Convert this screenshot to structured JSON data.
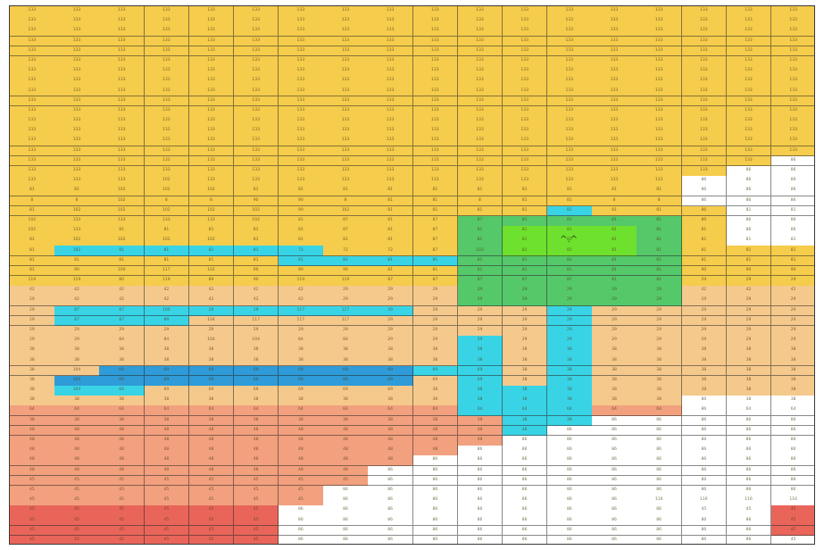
{
  "colors": {
    "yellow": "#f5cc4b",
    "light_orange": "#f5c98c",
    "salmon": "#f2a07e",
    "red": "#e9655a",
    "white": "#ffffff",
    "cyan": "#38d4e6",
    "blue": "#2f9bd8",
    "green": "#55c86a",
    "lime": "#6ee02e"
  },
  "face": "^.^",
  "grid": {
    "rows": [
      [
        "133",
        "133",
        "133",
        "133",
        "133",
        "133",
        "133",
        "133",
        "133",
        "133",
        "133",
        "133",
        "133",
        "133",
        "133",
        "133",
        "133",
        "133"
      ],
      [
        "133",
        "133",
        "133",
        "133",
        "133",
        "133",
        "133",
        "133",
        "133",
        "133",
        "133",
        "133",
        "133",
        "133",
        "133",
        "133",
        "133",
        "133"
      ],
      [
        "133",
        "133",
        "133",
        "133",
        "133",
        "133",
        "133",
        "133",
        "133",
        "133",
        "133",
        "133",
        "133",
        "133",
        "133",
        "133",
        "133",
        "133"
      ],
      [
        "133",
        "133",
        "133",
        "133",
        "133",
        "133",
        "133",
        "133",
        "133",
        "133",
        "133",
        "133",
        "133",
        "133",
        "133",
        "133",
        "133",
        "133"
      ],
      [
        "133",
        "133",
        "133",
        "133",
        "133",
        "133",
        "133",
        "133",
        "133",
        "133",
        "133",
        "133",
        "133",
        "133",
        "133",
        "133",
        "133",
        "133"
      ],
      [
        "133",
        "133",
        "133",
        "133",
        "133",
        "133",
        "133",
        "133",
        "133",
        "133",
        "133",
        "133",
        "133",
        "133",
        "133",
        "133",
        "133",
        "133"
      ],
      [
        "133",
        "133",
        "133",
        "133",
        "133",
        "133",
        "133",
        "133",
        "133",
        "133",
        "133",
        "133",
        "133",
        "133",
        "133",
        "133",
        "133",
        "133"
      ],
      [
        "133",
        "133",
        "133",
        "133",
        "133",
        "133",
        "133",
        "133",
        "133",
        "133",
        "133",
        "133",
        "133",
        "133",
        "133",
        "133",
        "133",
        "133"
      ],
      [
        "133",
        "133",
        "133",
        "133",
        "133",
        "133",
        "133",
        "133",
        "133",
        "133",
        "133",
        "133",
        "133",
        "133",
        "133",
        "133",
        "133",
        "133"
      ],
      [
        "133",
        "133",
        "133",
        "133",
        "133",
        "133",
        "133",
        "133",
        "133",
        "133",
        "133",
        "133",
        "133",
        "133",
        "133",
        "133",
        "133",
        "133"
      ],
      [
        "133",
        "133",
        "133",
        "133",
        "133",
        "133",
        "133",
        "133",
        "133",
        "133",
        "133",
        "133",
        "133",
        "133",
        "133",
        "133",
        "133",
        "133"
      ],
      [
        "133",
        "133",
        "133",
        "133",
        "133",
        "133",
        "133",
        "133",
        "133",
        "133",
        "133",
        "133",
        "133",
        "133",
        "133",
        "133",
        "133",
        "133"
      ],
      [
        "133",
        "133",
        "133",
        "133",
        "133",
        "133",
        "133",
        "133",
        "133",
        "133",
        "133",
        "133",
        "133",
        "133",
        "133",
        "133",
        "133",
        "133"
      ],
      [
        "133",
        "133",
        "133",
        "133",
        "133",
        "133",
        "133",
        "133",
        "133",
        "133",
        "133",
        "133",
        "133",
        "133",
        "133",
        "133",
        "133",
        "133"
      ],
      [
        "133",
        "133",
        "133",
        "133",
        "133",
        "133",
        "133",
        "133",
        "133",
        "133",
        "133",
        "133",
        "133",
        "133",
        "133",
        "133",
        "133",
        "133"
      ],
      [
        "133",
        "133",
        "133",
        "133",
        "133",
        "133",
        "133",
        "133",
        "133",
        "133",
        "133",
        "133",
        "133",
        "133",
        "133",
        "133",
        "133",
        "86"
      ],
      [
        "133",
        "133",
        "133",
        "133",
        "133",
        "133",
        "133",
        "133",
        "133",
        "133",
        "133",
        "133",
        "133",
        "133",
        "133",
        "133",
        "86",
        "86"
      ],
      [
        "133",
        "133",
        "133",
        "102",
        "133",
        "133",
        "133",
        "133",
        "133",
        "133",
        "133",
        "133",
        "133",
        "133",
        "133",
        "86",
        "86",
        "86"
      ],
      [
        "81",
        "81",
        "102",
        "102",
        "102",
        "81",
        "81",
        "81",
        "81",
        "81",
        "81",
        "81",
        "81",
        "81",
        "81",
        "86",
        "86",
        "86"
      ],
      [
        "8",
        "8",
        "102",
        "8",
        "8",
        "90",
        "90",
        "8",
        "81",
        "81",
        "8",
        "81",
        "81",
        "8",
        "8",
        "86",
        "86",
        "86"
      ],
      [
        "81",
        "102",
        "102",
        "102",
        "102",
        "102",
        "90",
        "102",
        "81",
        "81",
        "81",
        "81",
        "81",
        "81",
        "81",
        "86",
        "81",
        "81"
      ],
      [
        "102",
        "133",
        "133",
        "133",
        "133",
        "102",
        "81",
        "87",
        "81",
        "87",
        "87",
        "81",
        "81",
        "81",
        "81",
        "86",
        "86",
        "86"
      ],
      [
        "102",
        "133",
        "81",
        "81",
        "81",
        "81",
        "81",
        "87",
        "81",
        "87",
        "81",
        "81",
        "81",
        "81",
        "81",
        "81",
        "86",
        "86"
      ],
      [
        "81",
        "102",
        "102",
        "102",
        "102",
        "81",
        "81",
        "81",
        "81",
        "87",
        "81",
        "81",
        "81",
        "81",
        "81",
        "81",
        "81",
        "81"
      ],
      [
        "81",
        "102",
        "81",
        "81",
        "81",
        "81",
        "72",
        "72",
        "72",
        "87",
        "103",
        "81",
        "81",
        "81",
        "81",
        "81",
        "81",
        "81"
      ],
      [
        "81",
        "81",
        "81",
        "81",
        "81",
        "81",
        "81",
        "81",
        "81",
        "81",
        "81",
        "81",
        "81",
        "81",
        "81",
        "81",
        "81",
        "81"
      ],
      [
        "81",
        "90",
        "100",
        "117",
        "102",
        "90",
        "90",
        "90",
        "81",
        "81",
        "81",
        "81",
        "81",
        "81",
        "81",
        "90",
        "90",
        "90"
      ],
      [
        "119",
        "119",
        "80",
        "119",
        "89",
        "90",
        "119",
        "119",
        "87",
        "87",
        "87",
        "87",
        "87",
        "81",
        "81",
        "29",
        "29",
        "29"
      ],
      [
        "42",
        "42",
        "42",
        "42",
        "42",
        "42",
        "42",
        "29",
        "29",
        "29",
        "29",
        "29",
        "29",
        "29",
        "29",
        "42",
        "42",
        "42"
      ],
      [
        "29",
        "42",
        "42",
        "42",
        "42",
        "42",
        "42",
        "29",
        "29",
        "29",
        "29",
        "29",
        "29",
        "29",
        "29",
        "29",
        "29",
        "29"
      ],
      [
        "29",
        "87",
        "87",
        "100",
        "29",
        "29",
        "117",
        "117",
        "29",
        "29",
        "29",
        "29",
        "29",
        "29",
        "29",
        "29",
        "29",
        "29"
      ],
      [
        "29",
        "87",
        "87",
        "89",
        "104",
        "117",
        "117",
        "117",
        "29",
        "29",
        "29",
        "29",
        "29",
        "29",
        "29",
        "29",
        "29",
        "29"
      ],
      [
        "29",
        "29",
        "29",
        "29",
        "29",
        "29",
        "29",
        "29",
        "29",
        "29",
        "29",
        "29",
        "29",
        "29",
        "29",
        "29",
        "29",
        "29"
      ],
      [
        "29",
        "29",
        "84",
        "84",
        "104",
        "104",
        "84",
        "84",
        "29",
        "29",
        "29",
        "29",
        "29",
        "29",
        "29",
        "29",
        "29",
        "29"
      ],
      [
        "38",
        "38",
        "38",
        "38",
        "38",
        "38",
        "38",
        "38",
        "38",
        "38",
        "38",
        "38",
        "38",
        "38",
        "38",
        "38",
        "38",
        "38"
      ],
      [
        "38",
        "38",
        "38",
        "38",
        "38",
        "38",
        "38",
        "38",
        "38",
        "38",
        "38",
        "38",
        "38",
        "38",
        "38",
        "38",
        "38",
        "38"
      ],
      [
        "38",
        "104",
        "69",
        "69",
        "69",
        "69",
        "69",
        "69",
        "69",
        "69",
        "69",
        "38",
        "38",
        "38",
        "38",
        "38",
        "38",
        "38"
      ],
      [
        "38",
        "104",
        "69",
        "69",
        "69",
        "69",
        "69",
        "69",
        "69",
        "69",
        "69",
        "38",
        "38",
        "38",
        "38",
        "38",
        "38",
        "38"
      ],
      [
        "38",
        "104",
        "69",
        "69",
        "69",
        "69",
        "69",
        "69",
        "69",
        "38",
        "38",
        "38",
        "38",
        "38",
        "38",
        "38",
        "38",
        "38"
      ],
      [
        "38",
        "38",
        "38",
        "38",
        "38",
        "38",
        "38",
        "38",
        "38",
        "38",
        "38",
        "38",
        "38",
        "38",
        "38",
        "86",
        "38",
        "38"
      ],
      [
        "64",
        "64",
        "64",
        "64",
        "64",
        "64",
        "64",
        "64",
        "64",
        "64",
        "64",
        "64",
        "64",
        "64",
        "64",
        "86",
        "64",
        "64"
      ],
      [
        "38",
        "38",
        "38",
        "38",
        "38",
        "38",
        "38",
        "38",
        "38",
        "38",
        "38",
        "38",
        "38",
        "86",
        "86",
        "86",
        "86",
        "86"
      ],
      [
        "48",
        "48",
        "48",
        "48",
        "48",
        "48",
        "48",
        "48",
        "48",
        "48",
        "48",
        "48",
        "86",
        "86",
        "86",
        "86",
        "86",
        "86"
      ],
      [
        "48",
        "48",
        "48",
        "48",
        "48",
        "48",
        "48",
        "48",
        "48",
        "48",
        "48",
        "86",
        "86",
        "86",
        "86",
        "86",
        "86",
        "86"
      ],
      [
        "48",
        "48",
        "48",
        "48",
        "48",
        "48",
        "48",
        "48",
        "48",
        "48",
        "86",
        "86",
        "86",
        "86",
        "86",
        "86",
        "86",
        "86"
      ],
      [
        "48",
        "48",
        "48",
        "48",
        "48",
        "48",
        "48",
        "48",
        "48",
        "86",
        "86",
        "86",
        "86",
        "86",
        "86",
        "86",
        "86",
        "86"
      ],
      [
        "48",
        "48",
        "48",
        "48",
        "48",
        "48",
        "48",
        "48",
        "86",
        "86",
        "86",
        "86",
        "86",
        "86",
        "86",
        "86",
        "86",
        "86"
      ],
      [
        "45",
        "45",
        "45",
        "45",
        "45",
        "45",
        "45",
        "45",
        "86",
        "86",
        "86",
        "86",
        "86",
        "86",
        "86",
        "86",
        "86",
        "86"
      ],
      [
        "45",
        "45",
        "45",
        "45",
        "45",
        "45",
        "45",
        "86",
        "86",
        "86",
        "86",
        "86",
        "86",
        "86",
        "86",
        "86",
        "86",
        "86"
      ],
      [
        "45",
        "45",
        "45",
        "45",
        "45",
        "45",
        "45",
        "86",
        "86",
        "86",
        "86",
        "86",
        "86",
        "86",
        "116",
        "116",
        "116",
        "116"
      ],
      [
        "45",
        "45",
        "45",
        "45",
        "45",
        "45",
        "86",
        "86",
        "86",
        "86",
        "86",
        "86",
        "86",
        "86",
        "86",
        "45",
        "45",
        "45"
      ],
      [
        "45",
        "45",
        "45",
        "45",
        "45",
        "45",
        "86",
        "86",
        "86",
        "86",
        "86",
        "86",
        "86",
        "86",
        "86",
        "86",
        "86",
        "45"
      ],
      [
        "45",
        "45",
        "45",
        "45",
        "45",
        "45",
        "86",
        "86",
        "86",
        "86",
        "86",
        "86",
        "86",
        "86",
        "86",
        "86",
        "86",
        "45"
      ],
      [
        "45",
        "45",
        "45",
        "45",
        "45",
        "45",
        "86",
        "86",
        "86",
        "86",
        "86",
        "86",
        "86",
        "86",
        "86",
        "86",
        "86",
        "45"
      ]
    ]
  }
}
